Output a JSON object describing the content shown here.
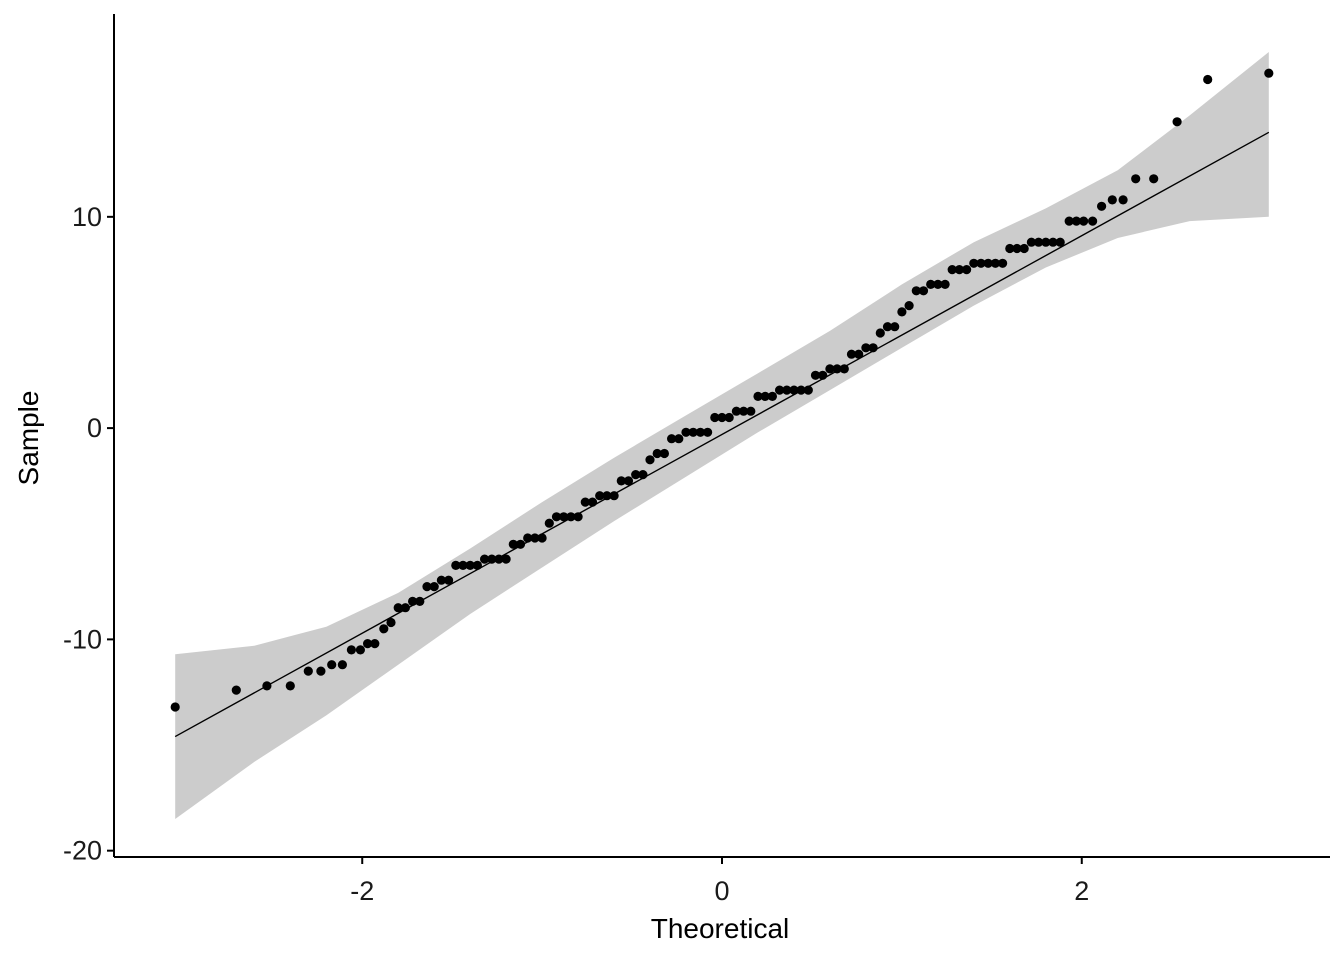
{
  "chart_data": {
    "type": "scatter",
    "title": "",
    "xlabel": "Theoretical",
    "ylabel": "Sample",
    "xlim": [
      -3.38,
      3.38
    ],
    "ylim": [
      -20.3,
      19.6
    ],
    "x_ticks": [
      -2,
      0,
      2
    ],
    "x_tick_labels": [
      "-2",
      "0",
      "2"
    ],
    "y_ticks": [
      -20,
      -10,
      0,
      10
    ],
    "y_tick_labels": [
      "-20",
      "-10",
      "0",
      "10"
    ],
    "grid": false,
    "legend": "none",
    "colors": {
      "points": "#000000",
      "line": "#000000",
      "band": "#cccccc",
      "axis": "#000000"
    },
    "reference_line": {
      "x": [
        -3.04,
        3.04
      ],
      "y": [
        -14.6,
        14.0
      ]
    },
    "confidence_band": {
      "x": [
        -3.04,
        -2.6,
        -2.2,
        -1.8,
        -1.4,
        -1.0,
        -0.6,
        -0.2,
        0.2,
        0.6,
        1.0,
        1.4,
        1.8,
        2.2,
        2.6,
        3.04
      ],
      "lower": [
        -18.5,
        -15.8,
        -13.6,
        -11.2,
        -8.8,
        -6.6,
        -4.4,
        -2.3,
        -0.2,
        1.8,
        3.8,
        5.8,
        7.6,
        9.0,
        9.8,
        10.0
      ],
      "upper": [
        -10.7,
        -10.3,
        -9.4,
        -7.8,
        -5.7,
        -3.5,
        -1.4,
        0.6,
        2.6,
        4.6,
        6.8,
        8.8,
        10.4,
        12.2,
        14.8,
        17.8
      ]
    },
    "series": [
      {
        "x": [
          -3.04,
          -2.7,
          -2.53,
          -2.4,
          -2.3,
          -2.23,
          -2.17,
          -2.11,
          -2.06,
          -2.01,
          -1.97,
          -1.93,
          -1.88,
          -1.84,
          -1.8,
          -1.76,
          -1.72,
          -1.68,
          -1.64,
          -1.6,
          -1.56,
          -1.52,
          -1.48,
          -1.44,
          -1.4,
          -1.36,
          -1.32,
          -1.28,
          -1.24,
          -1.2,
          -1.16,
          -1.12,
          -1.08,
          -1.04,
          -1.0,
          -0.96,
          -0.92,
          -0.88,
          -0.84,
          -0.8,
          -0.76,
          -0.72,
          -0.68,
          -0.64,
          -0.6,
          -0.56,
          -0.52,
          -0.48,
          -0.44,
          -0.4,
          -0.36,
          -0.32,
          -0.28,
          -0.24,
          -0.2,
          -0.16,
          -0.12,
          -0.08,
          -0.04,
          0.0,
          0.04,
          0.08,
          0.12,
          0.16,
          0.2,
          0.24,
          0.28,
          0.32,
          0.36,
          0.4,
          0.44,
          0.48,
          0.52,
          0.56,
          0.6,
          0.64,
          0.68,
          0.72,
          0.76,
          0.8,
          0.84,
          0.88,
          0.92,
          0.96,
          1.0,
          1.04,
          1.08,
          1.12,
          1.16,
          1.2,
          1.24,
          1.28,
          1.32,
          1.36,
          1.4,
          1.44,
          1.48,
          1.52,
          1.56,
          1.6,
          1.64,
          1.68,
          1.72,
          1.76,
          1.8,
          1.84,
          1.88,
          1.93,
          1.97,
          2.01,
          2.06,
          2.11,
          2.17,
          2.23,
          2.3,
          2.4,
          2.53,
          2.7,
          3.04
        ],
        "y": [
          -13.2,
          -12.4,
          -12.2,
          -12.2,
          -11.5,
          -11.5,
          -11.2,
          -11.2,
          -10.5,
          -10.5,
          -10.2,
          -10.2,
          -9.5,
          -9.2,
          -8.5,
          -8.5,
          -8.2,
          -8.2,
          -7.5,
          -7.5,
          -7.2,
          -7.2,
          -6.5,
          -6.5,
          -6.5,
          -6.5,
          -6.2,
          -6.2,
          -6.2,
          -6.2,
          -5.5,
          -5.5,
          -5.2,
          -5.2,
          -5.2,
          -4.5,
          -4.2,
          -4.2,
          -4.2,
          -4.2,
          -3.5,
          -3.5,
          -3.2,
          -3.2,
          -3.2,
          -2.5,
          -2.5,
          -2.2,
          -2.2,
          -1.5,
          -1.2,
          -1.2,
          -0.5,
          -0.5,
          -0.2,
          -0.2,
          -0.2,
          -0.2,
          0.5,
          0.5,
          0.5,
          0.8,
          0.8,
          0.8,
          1.5,
          1.5,
          1.5,
          1.8,
          1.8,
          1.8,
          1.8,
          1.8,
          2.5,
          2.5,
          2.8,
          2.8,
          2.8,
          3.5,
          3.5,
          3.8,
          3.8,
          4.5,
          4.8,
          4.8,
          5.5,
          5.8,
          6.5,
          6.5,
          6.8,
          6.8,
          6.8,
          7.5,
          7.5,
          7.5,
          7.8,
          7.8,
          7.8,
          7.8,
          7.8,
          8.5,
          8.5,
          8.5,
          8.8,
          8.8,
          8.8,
          8.8,
          8.8,
          9.8,
          9.8,
          9.8,
          9.8,
          10.5,
          10.8,
          10.8,
          11.8,
          11.8,
          14.5,
          16.5,
          16.8
        ]
      }
    ]
  }
}
